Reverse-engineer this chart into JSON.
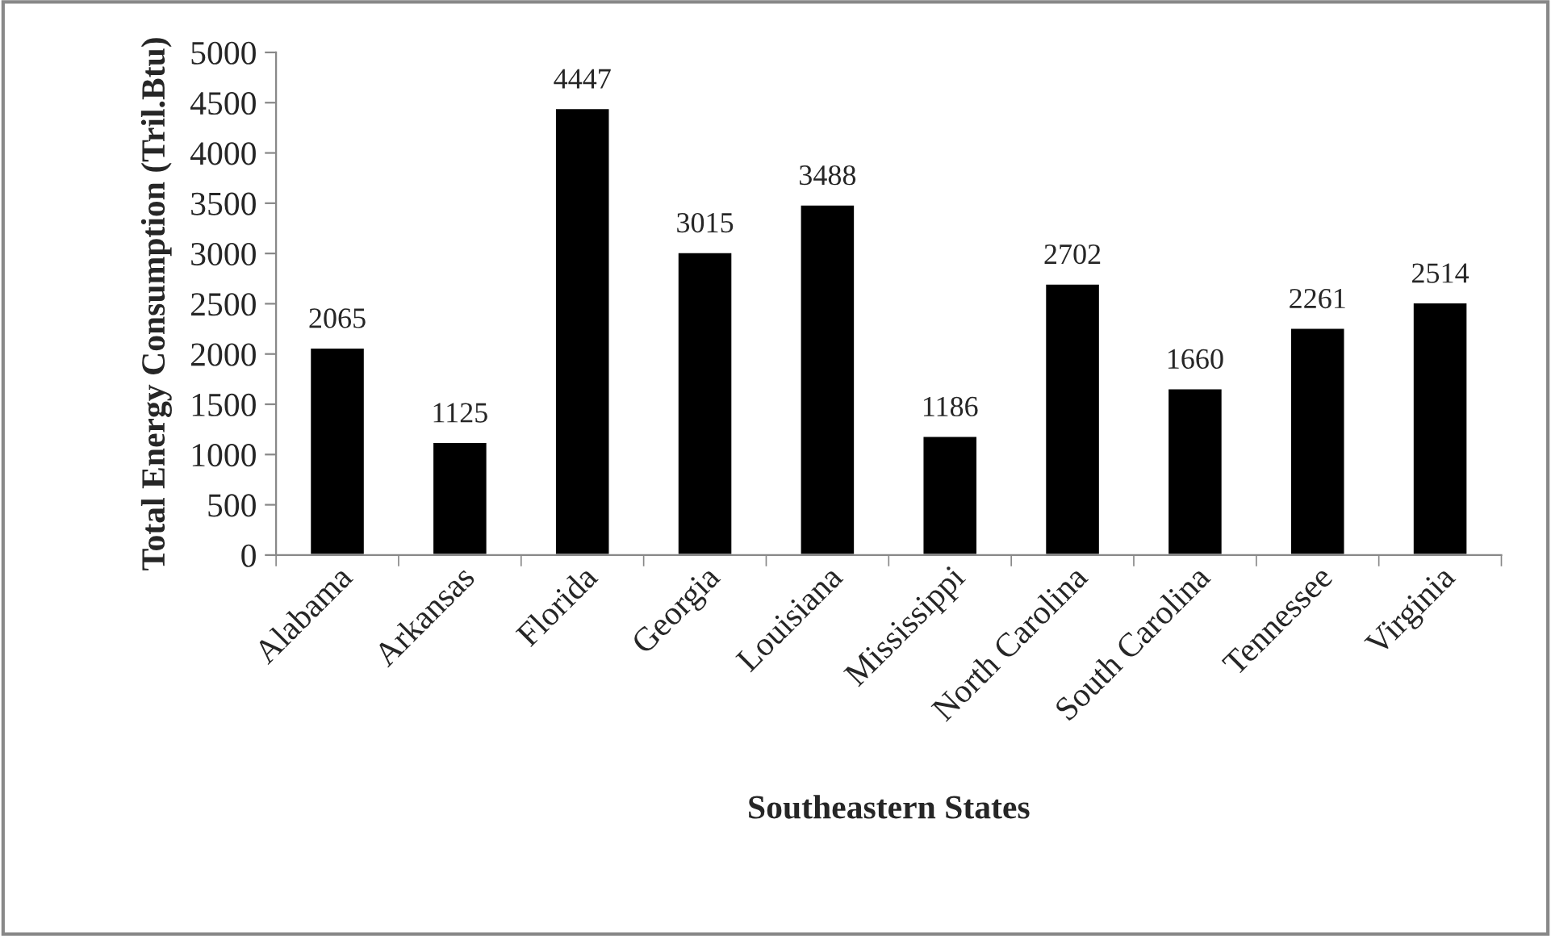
{
  "chart_data": {
    "type": "bar",
    "xlabel": "Southeastern States",
    "ylabel": "Total Energy Consumption (Tril.Btu)",
    "categories": [
      "Alabama",
      "Arkansas",
      "Florida",
      "Georgia",
      "Louisiana",
      "Mississippi",
      "North Carolina",
      "South Carolina",
      "Tennessee",
      "Virginia"
    ],
    "values": [
      2065,
      1125,
      4447,
      3015,
      3488,
      1186,
      2702,
      1660,
      2261,
      2514
    ],
    "color": "#000000",
    "ylim": [
      0,
      5000
    ],
    "yticks": [
      0,
      500,
      1000,
      1500,
      2000,
      2500,
      3000,
      3500,
      4000,
      4500,
      5000
    ],
    "data_labels": true,
    "grid": false,
    "legend": false
  }
}
